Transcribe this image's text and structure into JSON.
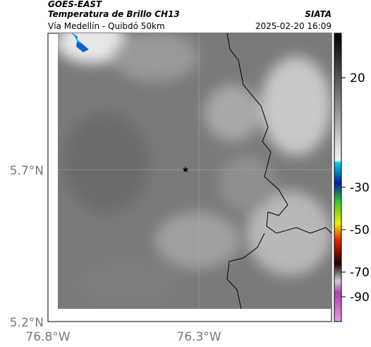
{
  "header": {
    "satellite": "GOES-EAST",
    "product": "Temperatura de Brillo CH13",
    "source": "SIATA",
    "region": "Vía Medellín - Quibdó 50km",
    "datetime": "2025-02-20 16:09"
  },
  "axes": {
    "lat_labels": [
      "5.7°N",
      "5.2°N"
    ],
    "lon_labels": [
      "76.8°W",
      "76.3°W"
    ]
  },
  "colorbar": {
    "ticks": [
      20,
      -30,
      -50,
      -70,
      -90
    ]
  }
}
